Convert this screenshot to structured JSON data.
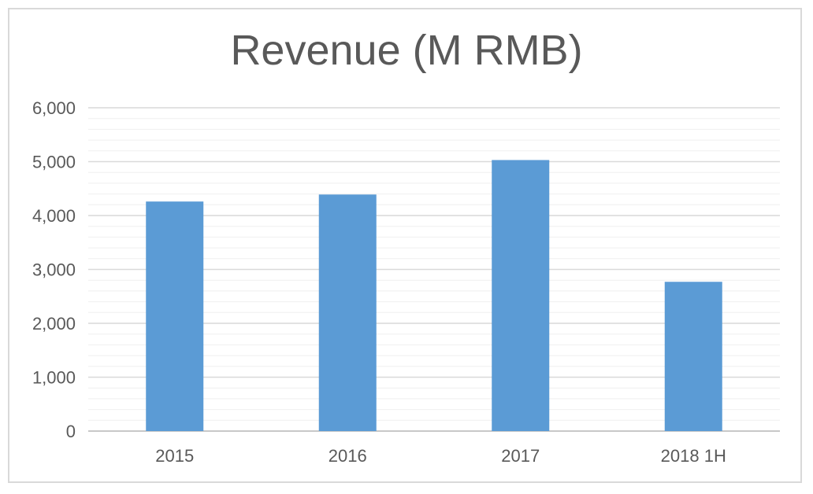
{
  "chart_data": {
    "type": "bar",
    "title": "Revenue (M RMB)",
    "xlabel": "",
    "ylabel": "",
    "categories": [
      "2015",
      "2016",
      "2017",
      "2018 1H"
    ],
    "values": [
      4260,
      4390,
      5030,
      2770
    ],
    "ylim": [
      0,
      6000
    ],
    "yticks": [
      0,
      1000,
      2000,
      3000,
      4000,
      5000,
      6000
    ],
    "ytick_labels": [
      "0",
      "1,000",
      "2,000",
      "3,000",
      "4,000",
      "5,000",
      "6,000"
    ],
    "grid": true,
    "bar_color": "#5b9bd5",
    "grid_color": "#d9d9d9",
    "minor_grid_color": "#efefef",
    "legend": "none"
  }
}
